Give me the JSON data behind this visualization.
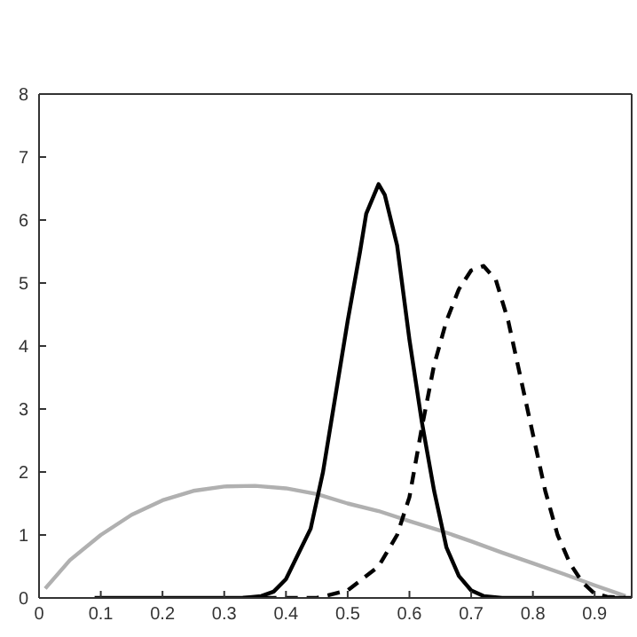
{
  "chart_data": {
    "type": "line",
    "xlim": [
      0,
      0.96
    ],
    "xticks": [
      0,
      0.1,
      0.2,
      0.3,
      0.4,
      0.5,
      0.6,
      0.7,
      0.8,
      0.9
    ],
    "ylim": [
      0,
      8
    ],
    "yticks": [
      0,
      1,
      2,
      3,
      4,
      5,
      6,
      7,
      8
    ],
    "legend": false,
    "marker": "none",
    "series": [
      {
        "color": "#b0b0b0",
        "line_style": "solid",
        "x": [
          0.01,
          0.05,
          0.1,
          0.15,
          0.2,
          0.25,
          0.3,
          0.35,
          0.4,
          0.45,
          0.5,
          0.55,
          0.6,
          0.65,
          0.7,
          0.75,
          0.8,
          0.85,
          0.9,
          0.95
        ],
        "values": [
          0.15,
          0.6,
          1.0,
          1.32,
          1.55,
          1.7,
          1.77,
          1.78,
          1.74,
          1.65,
          1.5,
          1.38,
          1.22,
          1.07,
          0.9,
          0.72,
          0.55,
          0.38,
          0.2,
          0.03
        ]
      },
      {
        "color": "#000000",
        "line_style": "solid",
        "x": [
          0.09,
          0.33,
          0.36,
          0.38,
          0.4,
          0.42,
          0.44,
          0.46,
          0.48,
          0.5,
          0.52,
          0.53,
          0.55,
          0.56,
          0.58,
          0.6,
          0.62,
          0.64,
          0.66,
          0.68,
          0.7,
          0.72,
          0.75,
          0.96
        ],
        "values": [
          0,
          0,
          0.03,
          0.1,
          0.3,
          0.7,
          1.1,
          2.0,
          3.2,
          4.4,
          5.5,
          6.1,
          6.57,
          6.4,
          5.6,
          4.1,
          2.8,
          1.7,
          0.8,
          0.35,
          0.12,
          0.03,
          0,
          0
        ]
      },
      {
        "color": "#000000",
        "line_style": "dashed",
        "x": [
          0.33,
          0.45,
          0.5,
          0.55,
          0.58,
          0.6,
          0.62,
          0.64,
          0.66,
          0.68,
          0.7,
          0.72,
          0.74,
          0.76,
          0.78,
          0.8,
          0.82,
          0.84,
          0.86,
          0.88,
          0.9,
          0.92,
          0.95
        ],
        "values": [
          0,
          0,
          0.12,
          0.5,
          1.0,
          1.6,
          2.7,
          3.7,
          4.4,
          4.9,
          5.2,
          5.27,
          5.05,
          4.4,
          3.5,
          2.6,
          1.7,
          1.0,
          0.55,
          0.25,
          0.07,
          0.02,
          0
        ]
      }
    ]
  }
}
